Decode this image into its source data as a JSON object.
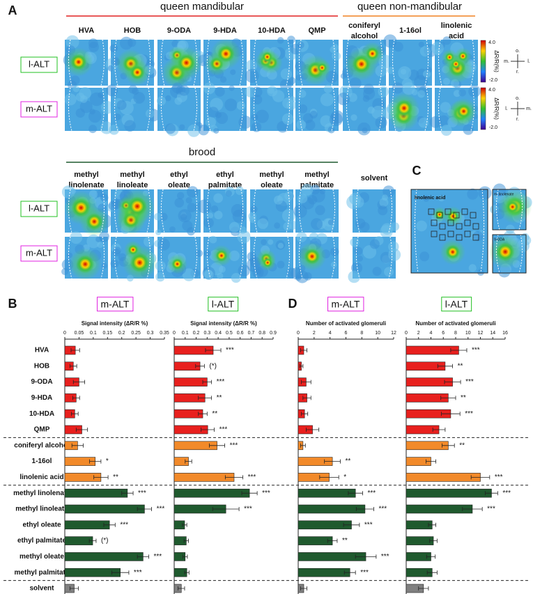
{
  "panel_a": {
    "label": "A",
    "groups": [
      {
        "name": "queen mandibular",
        "columns": [
          "HVA",
          "HOB",
          "9-ODA",
          "9-HDA",
          "10-HDA",
          "QMP"
        ]
      },
      {
        "name": "queen non-mandibular",
        "columns": [
          "coniferyl alcohol",
          "1-16ol",
          "linolenic acid"
        ]
      }
    ],
    "rows": [
      "l-ALT",
      "m-ALT"
    ],
    "colorbar": {
      "max": "4.0",
      "min": "-2.0",
      "label": "ΔR/R(%)"
    },
    "compass_1": {
      "top": "o.",
      "left": "m.",
      "right": "l.",
      "bottom": "r."
    },
    "compass_2": {
      "top": "o.",
      "left": "l.",
      "right": "m.",
      "bottom": "r."
    },
    "brood": {
      "name": "brood",
      "columns": [
        "methyl linolenate",
        "methyl linoleate",
        "ethyl oleate",
        "ethyl palmitate",
        "methyl oleate",
        "methyl palmitate"
      ],
      "extra": "solvent",
      "rows": [
        "l-ALT",
        "m-ALT"
      ]
    }
  },
  "panel_c": {
    "label": "C",
    "images": [
      "linolenic acid",
      "m. linolenate",
      "9-ODA"
    ]
  },
  "panel_labels": {
    "b": "B",
    "d": "D"
  },
  "chart_data": [
    {
      "type": "bar",
      "orientation": "horizontal",
      "title": "m-ALT",
      "xlabel": "Signal intensity (ΔR/R %)",
      "categories": [
        "HVA",
        "HOB",
        "9-ODA",
        "9-HDA",
        "10-HDA",
        "QMP",
        "coniferyl alcohol",
        "1-16ol",
        "linolenic acid",
        "methyl linolenate",
        "methyl linoleate",
        "ethyl oleate",
        "ethyl palmitate",
        "methyl oleate",
        "methyl palmitate",
        "solvent"
      ],
      "xlim": [
        0,
        0.35
      ],
      "xticks": [
        0,
        0.05,
        0.1,
        0.15,
        0.2,
        0.25,
        0.3,
        0.35
      ],
      "values": [
        0.037,
        0.03,
        0.05,
        0.04,
        0.035,
        0.06,
        0.045,
        0.107,
        0.127,
        0.22,
        0.28,
        0.157,
        0.098,
        0.275,
        0.195,
        0.033
      ],
      "errors": [
        0.015,
        0.012,
        0.02,
        0.012,
        0.012,
        0.02,
        0.02,
        0.02,
        0.025,
        0.02,
        0.025,
        0.02,
        0.012,
        0.02,
        0.03,
        0.015
      ],
      "sig": [
        null,
        null,
        null,
        null,
        null,
        null,
        null,
        "*",
        "**",
        "***",
        "***",
        "***",
        "(*)",
        "***",
        "***",
        null
      ],
      "colors": [
        "#e8201e",
        "#e8201e",
        "#e8201e",
        "#e8201e",
        "#e8201e",
        "#e8201e",
        "#f28a2a",
        "#f28a2a",
        "#f28a2a",
        "#1f5a2e",
        "#1f5a2e",
        "#1f5a2e",
        "#1f5a2e",
        "#1f5a2e",
        "#1f5a2e",
        "#808080"
      ],
      "title_color": "#e020e0"
    },
    {
      "type": "bar",
      "orientation": "horizontal",
      "title": "l-ALT",
      "xlabel": "Signal intensity (ΔR/R %)",
      "xlim": [
        0,
        0.9
      ],
      "xticks": [
        0,
        0.1,
        0.2,
        0.3,
        0.4,
        0.5,
        0.6,
        0.7,
        0.8,
        0.9
      ],
      "values": [
        0.355,
        0.235,
        0.3,
        0.28,
        0.26,
        0.305,
        0.39,
        0.13,
        0.545,
        0.685,
        0.47,
        0.095,
        0.11,
        0.1,
        0.115,
        0.065
      ],
      "errors": [
        0.07,
        0.04,
        0.04,
        0.06,
        0.04,
        0.06,
        0.07,
        0.03,
        0.08,
        0.07,
        0.12,
        0.02,
        0.02,
        0.02,
        0.02,
        0.03
      ],
      "sig": [
        "***",
        "(*)",
        "***",
        "**",
        "**",
        "***",
        "***",
        null,
        "***",
        "***",
        "***",
        null,
        null,
        null,
        null,
        null
      ],
      "colors": [
        "#e8201e",
        "#e8201e",
        "#e8201e",
        "#e8201e",
        "#e8201e",
        "#e8201e",
        "#f28a2a",
        "#f28a2a",
        "#f28a2a",
        "#1f5a2e",
        "#1f5a2e",
        "#1f5a2e",
        "#1f5a2e",
        "#1f5a2e",
        "#1f5a2e",
        "#808080"
      ],
      "title_color": "#22c022"
    },
    {
      "type": "bar",
      "orientation": "horizontal",
      "title": "m-ALT",
      "xlabel": "Number of activated glomeruli",
      "xlim": [
        0,
        12
      ],
      "xticks": [
        0,
        2,
        4,
        6,
        8,
        10,
        12
      ],
      "values": [
        0.7,
        0.4,
        1.0,
        1.1,
        0.8,
        1.8,
        0.6,
        4.3,
        3.9,
        7.2,
        8.4,
        6.7,
        4.3,
        8.5,
        6.5,
        0.7
      ],
      "errors": [
        0.4,
        0.2,
        0.6,
        0.5,
        0.4,
        0.8,
        0.3,
        1.0,
        1.2,
        0.9,
        1.1,
        1.0,
        0.6,
        1.3,
        0.7,
        0.4
      ],
      "sig": [
        null,
        null,
        null,
        null,
        null,
        null,
        null,
        "**",
        "*",
        "***",
        "***",
        "***",
        "**",
        "***",
        "***",
        null
      ],
      "colors": [
        "#e8201e",
        "#e8201e",
        "#e8201e",
        "#e8201e",
        "#e8201e",
        "#e8201e",
        "#f28a2a",
        "#f28a2a",
        "#f28a2a",
        "#1f5a2e",
        "#1f5a2e",
        "#1f5a2e",
        "#1f5a2e",
        "#1f5a2e",
        "#1f5a2e",
        "#808080"
      ],
      "title_color": "#e020e0"
    },
    {
      "type": "bar",
      "orientation": "horizontal",
      "title": "l-ALT",
      "xlabel": "Number of activated glomeruli",
      "xlim": [
        0,
        16
      ],
      "xticks": [
        0,
        2,
        4,
        6,
        8,
        10,
        12,
        14,
        16
      ],
      "values": [
        8.5,
        6.3,
        7.5,
        6.8,
        7.2,
        5.3,
        6.8,
        4.0,
        12.0,
        13.8,
        10.7,
        4.2,
        4.4,
        4.0,
        4.2,
        2.8
      ],
      "errors": [
        1.3,
        1.2,
        1.3,
        1.2,
        1.5,
        1.0,
        1.0,
        0.8,
        1.5,
        1.0,
        1.6,
        0.6,
        0.6,
        0.7,
        0.8,
        0.8
      ],
      "sig": [
        "***",
        "**",
        "***",
        "**",
        "***",
        null,
        "**",
        null,
        "***",
        "***",
        "***",
        null,
        null,
        null,
        null,
        null
      ],
      "colors": [
        "#e8201e",
        "#e8201e",
        "#e8201e",
        "#e8201e",
        "#e8201e",
        "#e8201e",
        "#f28a2a",
        "#f28a2a",
        "#f28a2a",
        "#1f5a2e",
        "#1f5a2e",
        "#1f5a2e",
        "#1f5a2e",
        "#1f5a2e",
        "#1f5a2e",
        "#808080"
      ],
      "title_color": "#22c022"
    }
  ]
}
